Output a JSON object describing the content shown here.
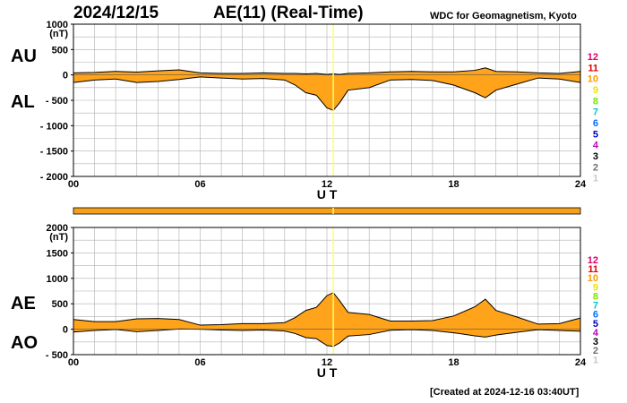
{
  "header": {
    "date": "2024/12/15",
    "title": "AE(11) (Real-Time)",
    "credit": "WDC for Geomagnetism, Kyoto",
    "created": "[Created at 2024-12-16 03:40UT]"
  },
  "colors": {
    "fill": "#ffa31a",
    "bar": "#f5a01a",
    "grid": "#b0b0b0",
    "marker": "#ffff66",
    "line": "#000000"
  },
  "stations": [
    {
      "label": "12",
      "color": "#e0006e"
    },
    {
      "label": "11",
      "color": "#e00000"
    },
    {
      "label": "10",
      "color": "#ff9900"
    },
    {
      "label": "9",
      "color": "#f0e000"
    },
    {
      "label": "8",
      "color": "#80e000"
    },
    {
      "label": "7",
      "color": "#00c8c8"
    },
    {
      "label": "6",
      "color": "#0070ff"
    },
    {
      "label": "5",
      "color": "#0000c0"
    },
    {
      "label": "4",
      "color": "#c000c0"
    },
    {
      "label": "3",
      "color": "#000000"
    },
    {
      "label": "2",
      "color": "#707070"
    },
    {
      "label": "1",
      "color": "#c8c8c8"
    }
  ],
  "chart_data": [
    {
      "type": "area",
      "labels": {
        "upper": "AU",
        "lower": "AL"
      },
      "unit": "(nT)",
      "xlabel": "U T",
      "xlim": [
        0,
        24
      ],
      "xticks": [
        "00",
        "06",
        "12",
        "18",
        "24"
      ],
      "ylim": [
        -2000,
        1000
      ],
      "yticks": [
        "1000",
        "500",
        "0",
        "- 500",
        "- 1000",
        "- 1500",
        "- 2000"
      ],
      "grid": true,
      "marker_ut": 12.3,
      "series": [
        {
          "name": "AU",
          "x": [
            0,
            1,
            2,
            3,
            4,
            5,
            6,
            7,
            8,
            9,
            10,
            10.5,
            11,
            11.5,
            12,
            12.3,
            12.6,
            13,
            14,
            15,
            16,
            17,
            18,
            19,
            19.5,
            20,
            21,
            22,
            23,
            24
          ],
          "values": [
            40,
            50,
            70,
            55,
            80,
            100,
            40,
            30,
            30,
            40,
            30,
            30,
            20,
            30,
            10,
            20,
            10,
            30,
            40,
            60,
            70,
            60,
            60,
            90,
            140,
            70,
            60,
            40,
            30,
            70
          ]
        },
        {
          "name": "AL",
          "x": [
            0,
            1,
            2,
            3,
            4,
            5,
            6,
            7,
            8,
            9,
            10,
            10.5,
            11,
            11.5,
            12,
            12.3,
            12.6,
            13,
            14,
            15,
            16,
            17,
            18,
            19,
            19.5,
            20,
            21,
            22,
            23,
            24
          ],
          "values": [
            -150,
            -100,
            -80,
            -150,
            -130,
            -90,
            -40,
            -60,
            -80,
            -70,
            -100,
            -200,
            -350,
            -400,
            -650,
            -700,
            -550,
            -300,
            -250,
            -100,
            -90,
            -110,
            -200,
            -350,
            -450,
            -300,
            -180,
            -60,
            -80,
            -150
          ]
        }
      ]
    },
    {
      "type": "area",
      "labels": {
        "upper": "AE",
        "lower": "AO"
      },
      "unit": "(nT)",
      "xlabel": "U T",
      "xlim": [
        0,
        24
      ],
      "xticks": [
        "00",
        "06",
        "12",
        "18",
        "24"
      ],
      "ylim": [
        -500,
        2000
      ],
      "yticks": [
        "2000",
        "1500",
        "1000",
        "500",
        "0",
        "- 500"
      ],
      "grid": true,
      "marker_ut": 12.3,
      "series": [
        {
          "name": "AE",
          "x": [
            0,
            1,
            2,
            3,
            4,
            5,
            6,
            7,
            8,
            9,
            10,
            10.5,
            11,
            11.5,
            12,
            12.3,
            12.6,
            13,
            14,
            15,
            16,
            17,
            18,
            19,
            19.5,
            20,
            21,
            22,
            23,
            24
          ],
          "values": [
            190,
            150,
            150,
            205,
            210,
            190,
            80,
            90,
            110,
            110,
            130,
            230,
            370,
            430,
            660,
            720,
            560,
            330,
            290,
            160,
            160,
            170,
            260,
            440,
            590,
            370,
            240,
            100,
            110,
            220
          ]
        },
        {
          "name": "AO",
          "x": [
            0,
            1,
            2,
            3,
            4,
            5,
            6,
            7,
            8,
            9,
            10,
            10.5,
            11,
            11.5,
            12,
            12.3,
            12.6,
            13,
            14,
            15,
            16,
            17,
            18,
            19,
            19.5,
            20,
            21,
            22,
            23,
            24
          ],
          "values": [
            -55,
            -25,
            -5,
            -48,
            -25,
            5,
            0,
            -15,
            -25,
            -15,
            -35,
            -85,
            -165,
            -185,
            -320,
            -340,
            -270,
            -135,
            -105,
            -20,
            -10,
            -25,
            -70,
            -130,
            -155,
            -115,
            -60,
            -10,
            -25,
            -40
          ]
        }
      ]
    }
  ]
}
